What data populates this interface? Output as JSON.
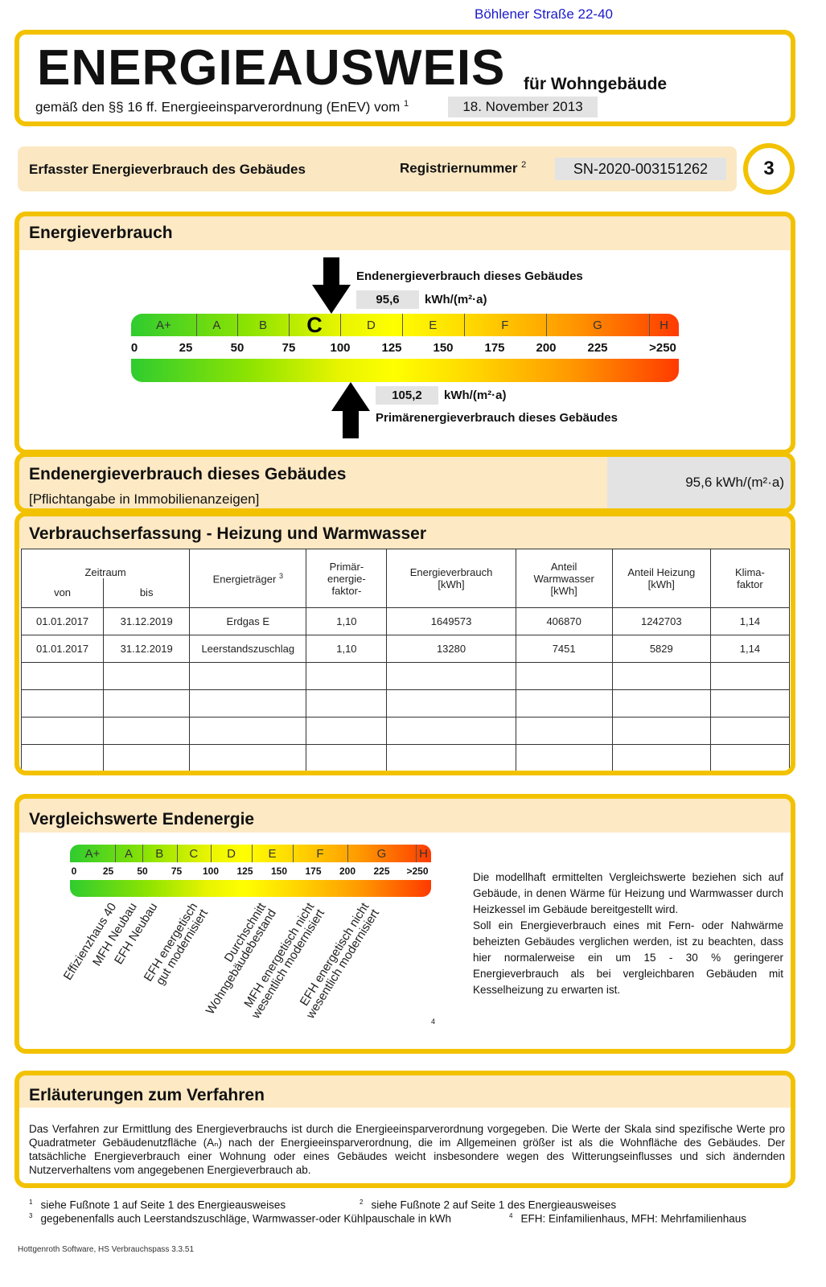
{
  "address": "Böhlener Straße 22-40",
  "header": {
    "title": "ENERGIEAUSWEIS",
    "subtitle": "für Wohngebäude",
    "legal": "gemäß den §§ 16 ff. Energieeinsparverordnung (EnEV) vom",
    "legal_sup": "1",
    "date": "18. November 2013"
  },
  "infobar": {
    "label": "Erfasster Energieverbrauch des Gebäudes",
    "reg_label": "Registriernummer",
    "reg_sup": "2",
    "reg_number": "SN-2020-003151262",
    "page": "3"
  },
  "energy": {
    "title": "Energieverbrauch",
    "end_label": "Endenergieverbrauch dieses Gebäudes",
    "end_value": "95,6",
    "end_value_num": 95.6,
    "unit": "kWh/(m²·a)",
    "primary_value": "105,2",
    "primary_value_num": 105.2,
    "primary_label": "Primärenergieverbrauch dieses Gebäudes",
    "highlight_class": "C",
    "classes": [
      {
        "label": "A+",
        "from": 0,
        "to": 30
      },
      {
        "label": "A",
        "from": 30,
        "to": 50
      },
      {
        "label": "B",
        "from": 50,
        "to": 75
      },
      {
        "label": "C",
        "from": 75,
        "to": 100
      },
      {
        "label": "D",
        "from": 100,
        "to": 130
      },
      {
        "label": "E",
        "from": 130,
        "to": 160
      },
      {
        "label": "F",
        "from": 160,
        "to": 200
      },
      {
        "label": "G",
        "from": 200,
        "to": 250
      },
      {
        "label": "H",
        "from": 250,
        "to": 265
      }
    ],
    "ticks": [
      "0",
      "25",
      "50",
      "75",
      "100",
      "125",
      "150",
      "175",
      "200",
      "225",
      ">250"
    ]
  },
  "endenergie": {
    "title": "Endenergieverbrauch dieses Gebäudes",
    "note": "[Pflichtangabe in Immobilienanzeigen]",
    "value": "95,6 kWh/(m²·a)"
  },
  "consumption": {
    "title": "Verbrauchserfassung - Heizung und Warmwasser",
    "headers": {
      "zeitraum": "Zeitraum",
      "von": "von",
      "bis": "bis",
      "traeger": "Energieträger",
      "traeger_sup": "3",
      "primaer": "Primär-\nenergie-\nfaktor-",
      "verbrauch": "Energieverbrauch\n[kWh]",
      "warmwasser": "Anteil\nWarmwasser\n[kWh]",
      "heizung": "Anteil Heizung\n[kWh]",
      "klima": "Klima-\nfaktor"
    },
    "rows": [
      [
        "01.01.2017",
        "31.12.2019",
        "Erdgas E",
        "1,10",
        "1649573",
        "406870",
        "1242703",
        "1,14"
      ],
      [
        "01.01.2017",
        "31.12.2019",
        "Leerstandszuschlag",
        "1,10",
        "13280",
        "7451",
        "5829",
        "1,14"
      ],
      [
        "",
        "",
        "",
        "",
        "",
        "",
        "",
        ""
      ],
      [
        "",
        "",
        "",
        "",
        "",
        "",
        "",
        ""
      ],
      [
        "",
        "",
        "",
        "",
        "",
        "",
        "",
        ""
      ],
      [
        "",
        "",
        "",
        "",
        "",
        "",
        "",
        ""
      ]
    ]
  },
  "comparison": {
    "title": "Vergleichswerte Endenergie",
    "footnote_mark": "4",
    "refs": [
      {
        "text": "Effizienzhaus 40",
        "value": 25
      },
      {
        "text": "MFH Neubau",
        "value": 40
      },
      {
        "text": "EFH Neubau",
        "value": 55
      },
      {
        "text": "EFH energetisch\ngut modernisiert",
        "value": 80
      },
      {
        "text": "Durchschnitt\nWohngebäudebestand",
        "value": 130
      },
      {
        "text": "MFH energetisch nicht\nwesentlich modernisiert",
        "value": 165
      },
      {
        "text": "EFH energetisch nicht\nwesentlich modernisiert",
        "value": 205
      }
    ],
    "text": "Die modellhaft ermittelten Vergleichswerte beziehen sich auf Gebäude, in denen Wärme für Heizung und Warmwasser durch Heizkessel im Gebäude bereitgestellt wird.\nSoll ein Energieverbrauch eines mit Fern- oder Nahwärme beheizten Gebäudes verglichen werden, ist zu beachten, dass hier normalerweise ein um 15 - 30 % geringerer Energieverbrauch als bei vergleichbaren Gebäuden mit Kesselheizung zu erwarten ist."
  },
  "explanation": {
    "title": "Erläuterungen zum Verfahren",
    "text": "Das Verfahren zur Ermittlung des Energieverbrauchs ist durch die Energieeinsparverordnung vorgegeben. Die Werte der Skala sind spezifische Werte pro Quadratmeter Gebäudenutzfläche (Aₙ) nach der Energieeinsparverordnung, die im Allgemeinen größer ist als die Wohnfläche des Gebäudes. Der tatsächliche Energieverbrauch einer Wohnung oder eines Gebäudes weicht insbesondere wegen des Witterungseinflusses und sich ändernden Nutzerverhaltens vom angegebenen Energieverbrauch ab."
  },
  "footnotes": [
    {
      "n": "1",
      "text": "siehe Fußnote 1 auf Seite 1 des Energieausweises"
    },
    {
      "n": "2",
      "text": "siehe Fußnote 2 auf Seite 1 des Energieausweises"
    },
    {
      "n": "3",
      "text": "gegebenenfalls auch Leerstandszuschläge, Warmwasser-oder Kühlpauschale in kWh"
    },
    {
      "n": "4",
      "text": "EFH: Einfamilienhaus, MFH: Mehrfamilienhaus"
    }
  ],
  "software": "Hottgenroth Software, HS Verbrauchspass 3.3.51",
  "colors": {
    "frame": "#f2c200",
    "strip": "#fde9c4",
    "address": "#1a1acc"
  }
}
